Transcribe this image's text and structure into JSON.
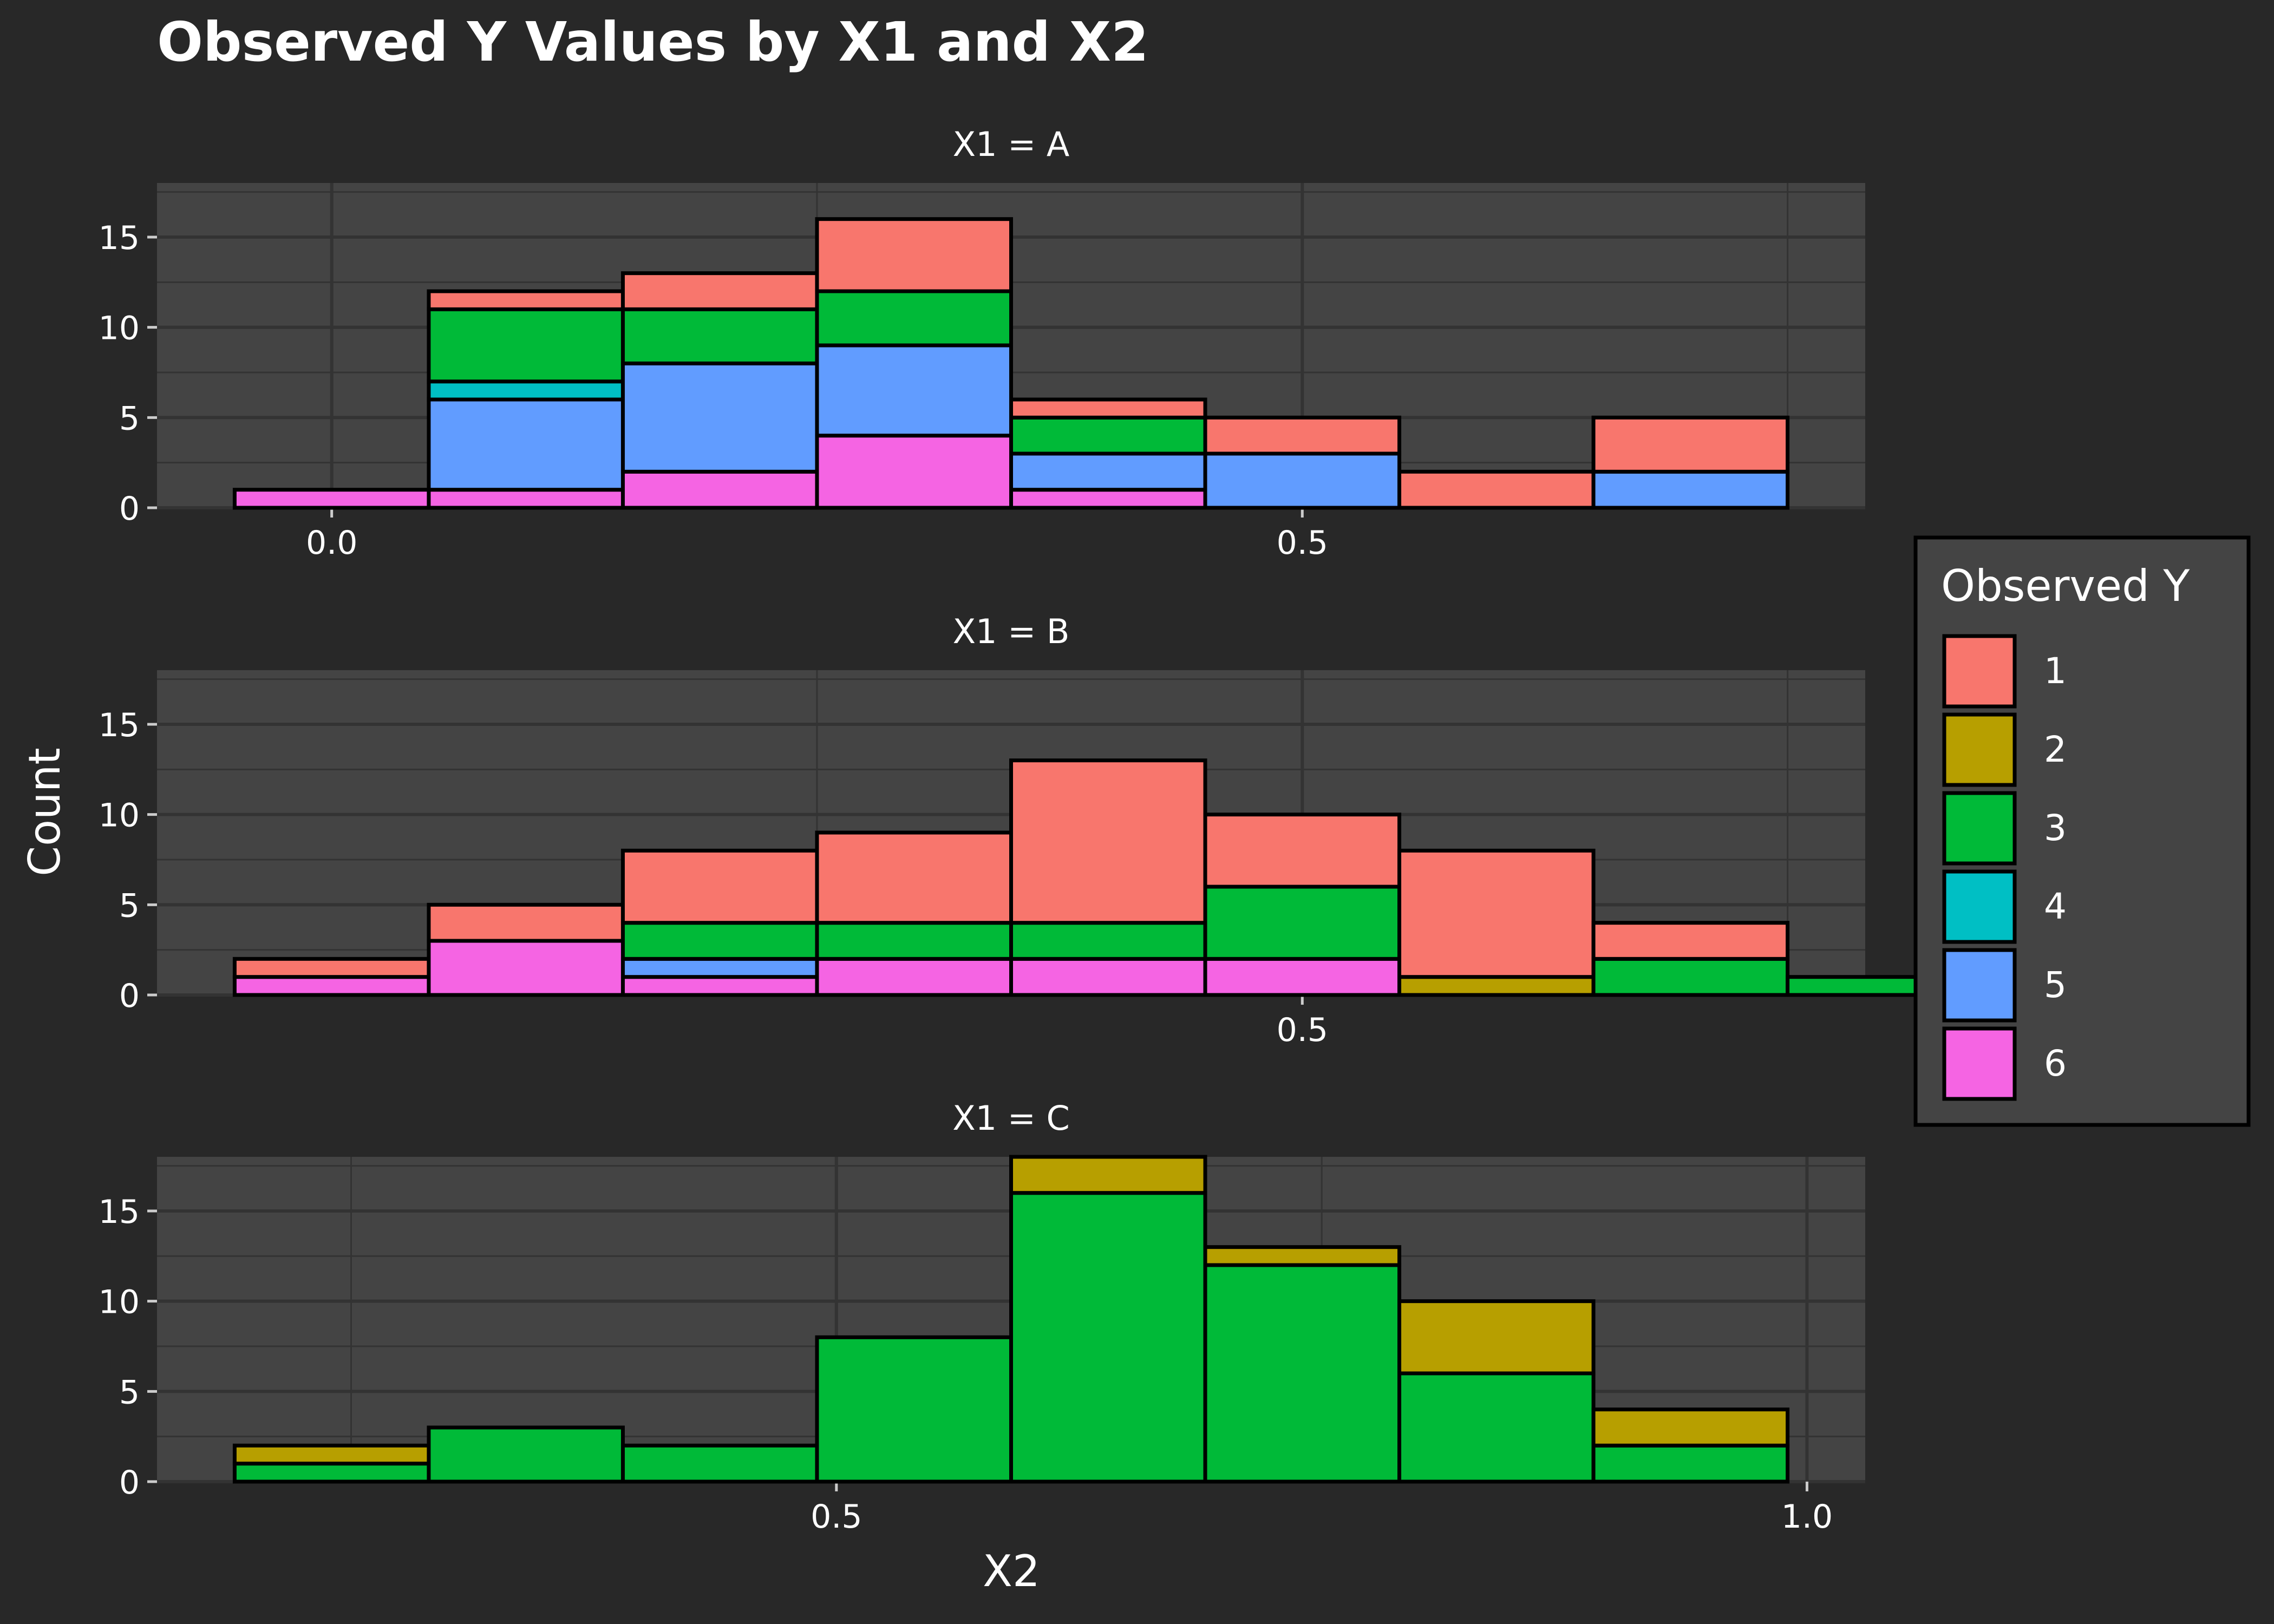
{
  "chart_data": {
    "type": "bar",
    "stacked": true,
    "faceted": true,
    "title": "Observed Y Values by X1 and X2",
    "xlabel": "X2",
    "ylabel": "Count",
    "legend": {
      "title": "Observed Y",
      "position": "right",
      "entries": [
        "1",
        "2",
        "3",
        "4",
        "5",
        "6"
      ]
    },
    "colors": {
      "1": "#F8766D",
      "2": "#B79F00",
      "3": "#00BA38",
      "4": "#00BFC4",
      "5": "#619CFF",
      "6": "#F564E3"
    },
    "theme": {
      "page_background": "#282828",
      "panel_background": "#444444",
      "grid": true,
      "grid_color": "#333333",
      "bar_outline": "#000000"
    },
    "ylim": [
      0,
      18
    ],
    "yticks": [
      0,
      5,
      10,
      15
    ],
    "stack_order": [
      "6",
      "5",
      "4",
      "3",
      "2",
      "1"
    ],
    "panels": [
      {
        "strip": "X1 = A",
        "xlim": [
          -0.09,
          0.79
        ],
        "xticks": [
          0.0,
          0.5
        ],
        "xtick_labels": [
          "0.0",
          "0.5"
        ],
        "bins": [
          {
            "x0": -0.05,
            "x1": 0.05,
            "counts": {
              "6": 1
            }
          },
          {
            "x0": 0.05,
            "x1": 0.15,
            "counts": {
              "6": 1,
              "5": 5,
              "4": 1,
              "3": 4,
              "1": 1
            }
          },
          {
            "x0": 0.15,
            "x1": 0.25,
            "counts": {
              "6": 2,
              "5": 6,
              "3": 3,
              "1": 2
            }
          },
          {
            "x0": 0.25,
            "x1": 0.35,
            "counts": {
              "6": 4,
              "5": 5,
              "3": 3,
              "1": 4
            }
          },
          {
            "x0": 0.35,
            "x1": 0.45,
            "counts": {
              "6": 1,
              "5": 2,
              "3": 2,
              "1": 1
            }
          },
          {
            "x0": 0.45,
            "x1": 0.55,
            "counts": {
              "5": 3,
              "1": 2
            }
          },
          {
            "x0": 0.55,
            "x1": 0.65,
            "counts": {
              "1": 2
            }
          },
          {
            "x0": 0.65,
            "x1": 0.75,
            "counts": {
              "5": 2,
              "1": 3
            }
          }
        ]
      },
      {
        "strip": "X1 = B",
        "xlim": [
          -0.09,
          0.79
        ],
        "xticks": [
          0.5
        ],
        "xtick_labels": [
          "0.5"
        ],
        "bins": [
          {
            "x0": -0.05,
            "x1": 0.05,
            "counts": {
              "6": 1,
              "1": 1
            }
          },
          {
            "x0": 0.05,
            "x1": 0.15,
            "counts": {
              "6": 3,
              "1": 2
            }
          },
          {
            "x0": 0.15,
            "x1": 0.25,
            "counts": {
              "6": 1,
              "5": 1,
              "3": 2,
              "1": 4
            }
          },
          {
            "x0": 0.25,
            "x1": 0.35,
            "counts": {
              "6": 2,
              "3": 2,
              "1": 5
            }
          },
          {
            "x0": 0.35,
            "x1": 0.45,
            "counts": {
              "6": 2,
              "3": 2,
              "1": 9
            }
          },
          {
            "x0": 0.45,
            "x1": 0.55,
            "counts": {
              "6": 2,
              "3": 4,
              "1": 4
            }
          },
          {
            "x0": 0.55,
            "x1": 0.65,
            "counts": {
              "2": 1,
              "1": 7
            }
          },
          {
            "x0": 0.65,
            "x1": 0.75,
            "counts": {
              "3": 2,
              "1": 2
            }
          },
          {
            "x0": 0.75,
            "x1": 0.85,
            "counts": {
              "3": 1
            }
          }
        ]
      },
      {
        "strip": "X1 = C",
        "xlim": [
          0.15,
          1.03
        ],
        "xticks": [
          0.5,
          1.0
        ],
        "xtick_labels": [
          "0.5",
          "1.0"
        ],
        "bins": [
          {
            "x0": 0.19,
            "x1": 0.29,
            "counts": {
              "3": 1,
              "2": 1
            }
          },
          {
            "x0": 0.29,
            "x1": 0.39,
            "counts": {
              "3": 3
            }
          },
          {
            "x0": 0.39,
            "x1": 0.49,
            "counts": {
              "3": 2
            }
          },
          {
            "x0": 0.49,
            "x1": 0.59,
            "counts": {
              "3": 8
            }
          },
          {
            "x0": 0.59,
            "x1": 0.69,
            "counts": {
              "3": 16,
              "2": 2
            }
          },
          {
            "x0": 0.69,
            "x1": 0.79,
            "counts": {
              "3": 12,
              "2": 1
            }
          },
          {
            "x0": 0.79,
            "x1": 0.89,
            "counts": {
              "3": 6,
              "2": 4
            }
          },
          {
            "x0": 0.89,
            "x1": 0.99,
            "counts": {
              "3": 2,
              "2": 2
            }
          }
        ]
      }
    ]
  }
}
